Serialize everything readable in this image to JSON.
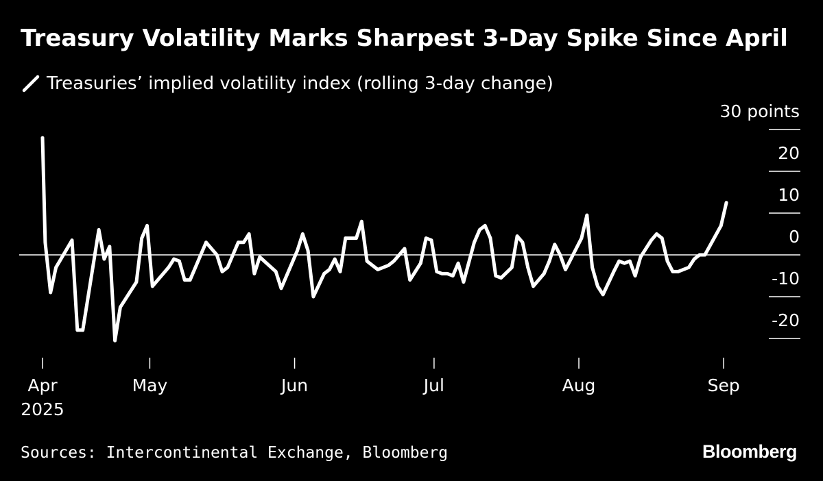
{
  "chart_data": {
    "type": "line",
    "title": "Treasury Volatility Marks Sharpest 3-Day Spike Since April",
    "series": [
      {
        "name": "Treasuries’ implied volatility index (rolling 3-day change)",
        "color": "#ffffff",
        "points": [
          [
            0,
            28
          ],
          [
            0.5,
            3
          ],
          [
            1.5,
            -9
          ],
          [
            2.5,
            -3
          ],
          [
            5.5,
            3.5
          ],
          [
            6.5,
            -18
          ],
          [
            7.5,
            -18
          ],
          [
            10.5,
            6
          ],
          [
            11.5,
            -1
          ],
          [
            12.5,
            2
          ],
          [
            13.5,
            -20.5
          ],
          [
            14.5,
            -12.5
          ],
          [
            17.5,
            -6.5
          ],
          [
            18.5,
            4
          ],
          [
            19.5,
            7
          ],
          [
            20.5,
            -7.5
          ],
          [
            23.5,
            -3
          ],
          [
            24.5,
            -1
          ],
          [
            25.5,
            -1.5
          ],
          [
            26.5,
            -6
          ],
          [
            27.5,
            -6
          ],
          [
            30.5,
            3
          ],
          [
            32.5,
            0
          ],
          [
            33.5,
            -4
          ],
          [
            34.5,
            -3
          ],
          [
            36.5,
            3
          ],
          [
            37.5,
            3
          ],
          [
            38.5,
            5
          ],
          [
            39.5,
            -4.5
          ],
          [
            40.5,
            -0.5
          ],
          [
            43.5,
            -4
          ],
          [
            44.5,
            -8
          ],
          [
            47.5,
            1
          ],
          [
            48.5,
            5
          ],
          [
            49.5,
            1
          ],
          [
            50.5,
            -10
          ],
          [
            52.5,
            -4.5
          ],
          [
            53.5,
            -3.5
          ],
          [
            54.5,
            -1
          ],
          [
            55.5,
            -4
          ],
          [
            56.5,
            4
          ],
          [
            58.5,
            4
          ],
          [
            59.5,
            8
          ],
          [
            60.5,
            -1.5
          ],
          [
            62.5,
            -3.5
          ],
          [
            64.5,
            -2.5
          ],
          [
            65.5,
            -1.5
          ],
          [
            67.5,
            1.5
          ],
          [
            68.5,
            -6
          ],
          [
            70.5,
            -2
          ],
          [
            71.5,
            4
          ],
          [
            72.5,
            3.5
          ],
          [
            73.5,
            -4
          ],
          [
            74.5,
            -4.5
          ],
          [
            75.5,
            -4.5
          ],
          [
            76.5,
            -5
          ],
          [
            77.5,
            -2
          ],
          [
            78.5,
            -6.5
          ],
          [
            80.5,
            3
          ],
          [
            81.5,
            6
          ],
          [
            82.5,
            7
          ],
          [
            83.5,
            4
          ],
          [
            84.5,
            -5
          ],
          [
            85.5,
            -5.5
          ],
          [
            87.5,
            -3
          ],
          [
            88.5,
            4.5
          ],
          [
            89.5,
            3
          ],
          [
            90.5,
            -3
          ],
          [
            91.5,
            -7.5
          ],
          [
            93.5,
            -4.5
          ],
          [
            94.5,
            -1.5
          ],
          [
            95.5,
            2.5
          ],
          [
            96.5,
            0
          ],
          [
            97.5,
            -3.5
          ],
          [
            100.5,
            4
          ],
          [
            101.5,
            9.5
          ],
          [
            102.5,
            -3
          ],
          [
            103.5,
            -7.5
          ],
          [
            104.5,
            -9.5
          ],
          [
            106.5,
            -4
          ],
          [
            107.5,
            -1.5
          ],
          [
            108.5,
            -2
          ],
          [
            109.5,
            -1.5
          ],
          [
            110.5,
            -5
          ],
          [
            111.5,
            -0.5
          ],
          [
            113.5,
            3.5
          ],
          [
            114.5,
            5
          ],
          [
            115.5,
            4
          ],
          [
            116.5,
            -1.5
          ],
          [
            117.5,
            -4
          ],
          [
            118.5,
            -4
          ],
          [
            120.5,
            -3
          ],
          [
            121.5,
            -1
          ],
          [
            122.5,
            0
          ],
          [
            123.5,
            0
          ],
          [
            126.5,
            7
          ],
          [
            127.5,
            12.5
          ]
        ]
      }
    ],
    "x_ticks": [
      {
        "x": 0,
        "label": "Apr",
        "sublabel": "2025"
      },
      {
        "x": 20,
        "label": "May"
      },
      {
        "x": 47,
        "label": "Jun"
      },
      {
        "x": 73,
        "label": "Jul"
      },
      {
        "x": 100,
        "label": "Aug"
      },
      {
        "x": 127,
        "label": "Sep"
      }
    ],
    "xlim": [
      0,
      128
    ],
    "y_ticks": [
      {
        "value": 30,
        "label": "30 points"
      },
      {
        "value": 20,
        "label": "20"
      },
      {
        "value": 10,
        "label": "10"
      },
      {
        "value": 0,
        "label": "0"
      },
      {
        "value": -10,
        "label": "-10"
      },
      {
        "value": -20,
        "label": "-20"
      }
    ],
    "ylim": [
      -20,
      30
    ],
    "xlabel": "",
    "ylabel": "points",
    "grid": false,
    "zero_line": true,
    "legend_position": "top-left"
  },
  "legend": {
    "label": "Treasuries’ implied volatility index (rolling 3-day change)"
  },
  "footer": {
    "source": "Sources: Intercontinental Exchange, Bloomberg",
    "brand": "Bloomberg"
  },
  "colors": {
    "background": "#000000",
    "foreground": "#ffffff",
    "line": "#ffffff"
  }
}
